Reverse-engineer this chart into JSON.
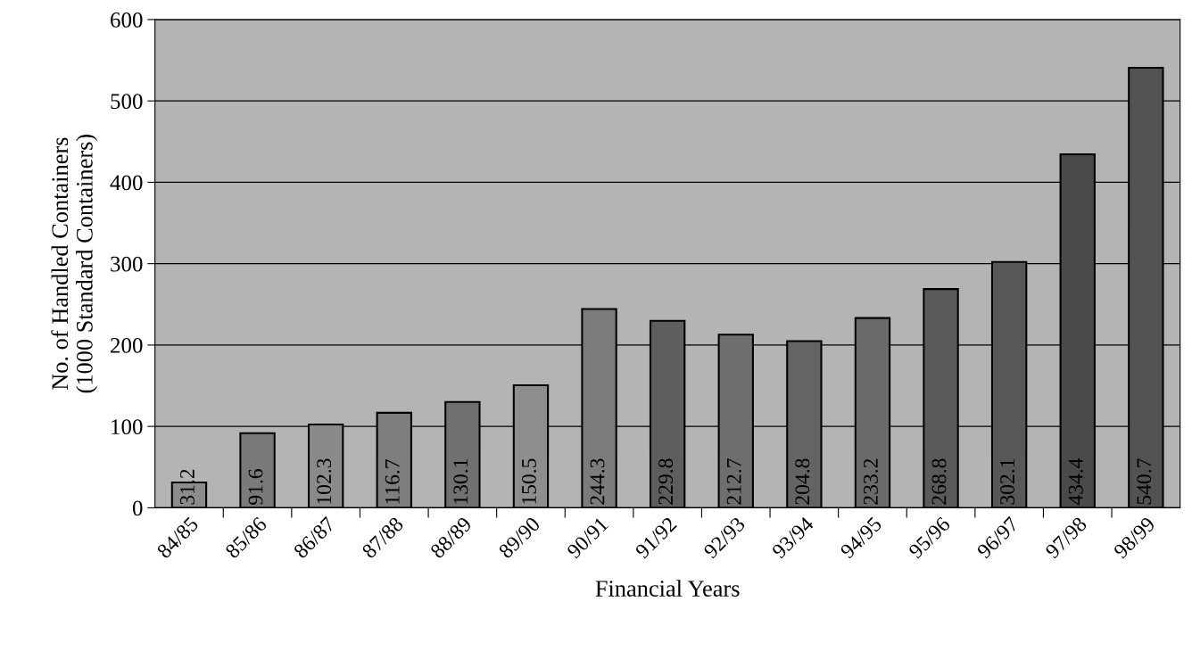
{
  "chart_data": {
    "type": "bar",
    "xlabel": "Financial Years",
    "ylabel": "No. of Handled Containers\n(1000 Standard Containers)",
    "categories": [
      "84/85",
      "85/86",
      "86/87",
      "87/88",
      "88/89",
      "89/90",
      "90/91",
      "91/92",
      "92/93",
      "93/94",
      "94/95",
      "95/96",
      "96/97",
      "97/98",
      "98/99"
    ],
    "values": [
      31.2,
      91.6,
      102.3,
      116.7,
      130.1,
      150.5,
      244.3,
      229.8,
      212.7,
      204.8,
      233.2,
      268.8,
      302.1,
      434.4,
      540.7
    ],
    "colors": [
      "#8c8c8c",
      "#7a7a7a",
      "#8a8a8a",
      "#7e7e7e",
      "#707070",
      "#8e8e8e",
      "#7c7c7c",
      "#5e5e5e",
      "#6e6e6e",
      "#646464",
      "#6a6a6a",
      "#5a5a5a",
      "#585858",
      "#4a4a4a",
      "#525252"
    ],
    "ylim": [
      0,
      600
    ],
    "yticks": [
      0,
      100,
      200,
      300,
      400,
      500,
      600
    ],
    "grid": "y",
    "data_labels": true
  }
}
